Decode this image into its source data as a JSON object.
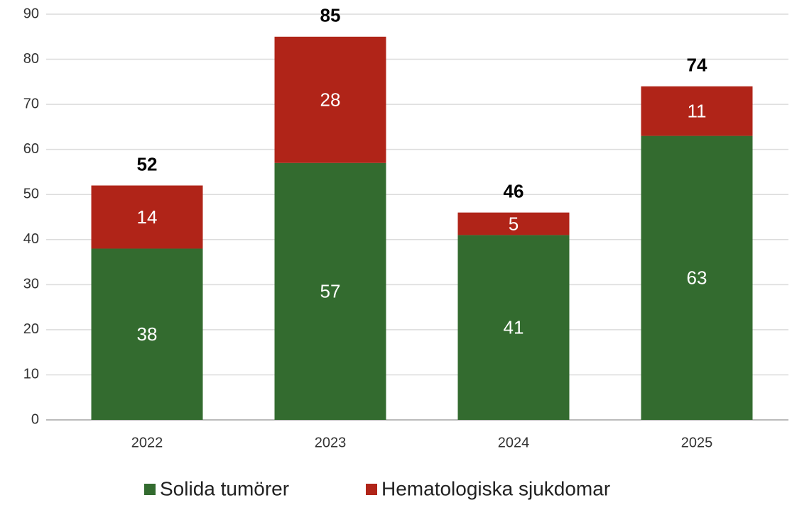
{
  "chart_data": {
    "type": "stacked_bar",
    "categories": [
      "2022",
      "2023",
      "2024",
      "2025"
    ],
    "series": [
      {
        "name": "Solida tumörer",
        "color": "#336b2f",
        "values": [
          38,
          57,
          41,
          63
        ]
      },
      {
        "name": "Hematologiska sjukdomar",
        "color": "#b02418",
        "values": [
          14,
          28,
          5,
          11
        ]
      }
    ],
    "totals": [
      52,
      85,
      46,
      74
    ],
    "ylim": [
      0,
      90
    ],
    "yticks": [
      0,
      10,
      20,
      30,
      40,
      50,
      60,
      70,
      80,
      90
    ],
    "grid": true
  }
}
